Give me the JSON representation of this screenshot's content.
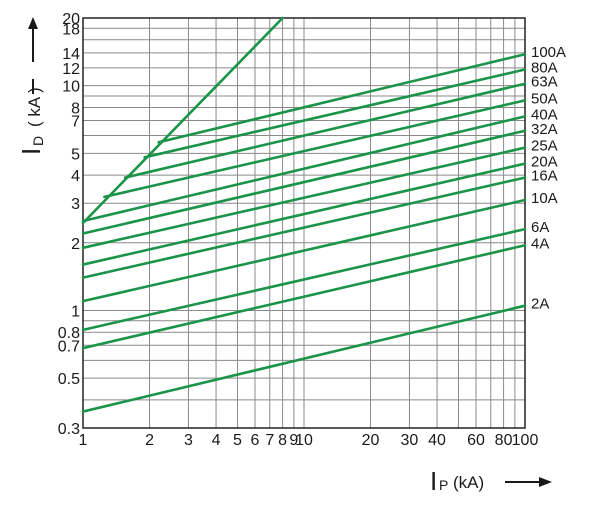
{
  "chart_data": {
    "type": "line",
    "title": "",
    "x_scale": "log",
    "y_scale": "log",
    "xlim": [
      1,
      100
    ],
    "ylim": [
      0.3,
      20
    ],
    "grid": true,
    "xlabel": {
      "main": "I",
      "sub": "P",
      "unit": "(kA)"
    },
    "ylabel": {
      "main": "I",
      "sub": "D",
      "unit": "( kA )"
    },
    "x_ticks": [
      {
        "value": 1,
        "label": "1"
      },
      {
        "value": 2,
        "label": "2"
      },
      {
        "value": 3,
        "label": "3"
      },
      {
        "value": 4,
        "label": "4"
      },
      {
        "value": 5,
        "label": "5"
      },
      {
        "value": 6,
        "label": "6"
      },
      {
        "value": 7,
        "label": "7"
      },
      {
        "value": 8,
        "label": "8"
      },
      {
        "value": 9,
        "label": "9"
      },
      {
        "value": 10,
        "label": "10"
      },
      {
        "value": 20,
        "label": "20"
      },
      {
        "value": 30,
        "label": "30"
      },
      {
        "value": 40,
        "label": "40"
      },
      {
        "value": 60,
        "label": "60"
      },
      {
        "value": 80,
        "label": "80"
      },
      {
        "value": 100,
        "label": "100"
      }
    ],
    "y_ticks": [
      {
        "value": 0.3,
        "label": "0.3"
      },
      {
        "value": 0.5,
        "label": "0.5"
      },
      {
        "value": 0.7,
        "label": "0.7"
      },
      {
        "value": 0.8,
        "label": "0.8"
      },
      {
        "value": 1,
        "label": "1"
      },
      {
        "value": 2,
        "label": "2"
      },
      {
        "value": 3,
        "label": "3"
      },
      {
        "value": 4,
        "label": "4"
      },
      {
        "value": 5,
        "label": "5"
      },
      {
        "value": 7,
        "label": "7"
      },
      {
        "value": 8,
        "label": "8"
      },
      {
        "value": 10,
        "label": "10"
      },
      {
        "value": 12,
        "label": "12"
      },
      {
        "value": 14,
        "label": "14"
      },
      {
        "value": 18,
        "label": "18"
      },
      {
        "value": 20,
        "label": "20"
      }
    ],
    "x_grid": [
      1,
      2,
      3,
      4,
      5,
      6,
      7,
      8,
      9,
      10,
      20,
      30,
      40,
      50,
      60,
      70,
      80,
      90,
      100
    ],
    "y_grid": [
      0.3,
      0.4,
      0.5,
      0.6,
      0.7,
      0.8,
      0.9,
      1,
      2,
      3,
      4,
      5,
      6,
      7,
      8,
      9,
      10,
      12,
      14,
      16,
      18,
      20
    ],
    "envelope": {
      "points": [
        {
          "x": 1,
          "y": 2.45
        },
        {
          "x": 8,
          "y": 20
        }
      ]
    },
    "series": [
      {
        "name": "100A",
        "points": [
          {
            "x": 2.2,
            "y": 5.6
          },
          {
            "x": 100,
            "y": 13.8
          }
        ]
      },
      {
        "name": "80A",
        "points": [
          {
            "x": 1.9,
            "y": 4.8
          },
          {
            "x": 100,
            "y": 11.8
          }
        ]
      },
      {
        "name": "63A",
        "points": [
          {
            "x": 1.55,
            "y": 3.9
          },
          {
            "x": 100,
            "y": 10.2
          }
        ]
      },
      {
        "name": "50A",
        "points": [
          {
            "x": 1.25,
            "y": 3.2
          },
          {
            "x": 100,
            "y": 8.6
          }
        ]
      },
      {
        "name": "40A",
        "points": [
          {
            "x": 1,
            "y": 2.5
          },
          {
            "x": 100,
            "y": 7.3
          }
        ]
      },
      {
        "name": "32A",
        "points": [
          {
            "x": 1,
            "y": 2.2
          },
          {
            "x": 100,
            "y": 6.3
          }
        ]
      },
      {
        "name": "25A",
        "points": [
          {
            "x": 1,
            "y": 1.9
          },
          {
            "x": 100,
            "y": 5.3
          }
        ]
      },
      {
        "name": "20A",
        "points": [
          {
            "x": 1,
            "y": 1.6
          },
          {
            "x": 100,
            "y": 4.5
          }
        ]
      },
      {
        "name": "16A",
        "points": [
          {
            "x": 1,
            "y": 1.4
          },
          {
            "x": 100,
            "y": 3.9
          }
        ]
      },
      {
        "name": "10A",
        "points": [
          {
            "x": 1,
            "y": 1.1
          },
          {
            "x": 100,
            "y": 3.1
          }
        ]
      },
      {
        "name": "6A",
        "points": [
          {
            "x": 1,
            "y": 0.82
          },
          {
            "x": 100,
            "y": 2.3
          }
        ]
      },
      {
        "name": "4A",
        "points": [
          {
            "x": 1,
            "y": 0.68
          },
          {
            "x": 100,
            "y": 1.95
          }
        ]
      },
      {
        "name": "2A",
        "points": [
          {
            "x": 1,
            "y": 0.355
          },
          {
            "x": 100,
            "y": 1.05
          }
        ]
      }
    ],
    "colors": {
      "curve": "#1a9448",
      "grid": "#8a8a8a",
      "axis": "#222222"
    }
  }
}
